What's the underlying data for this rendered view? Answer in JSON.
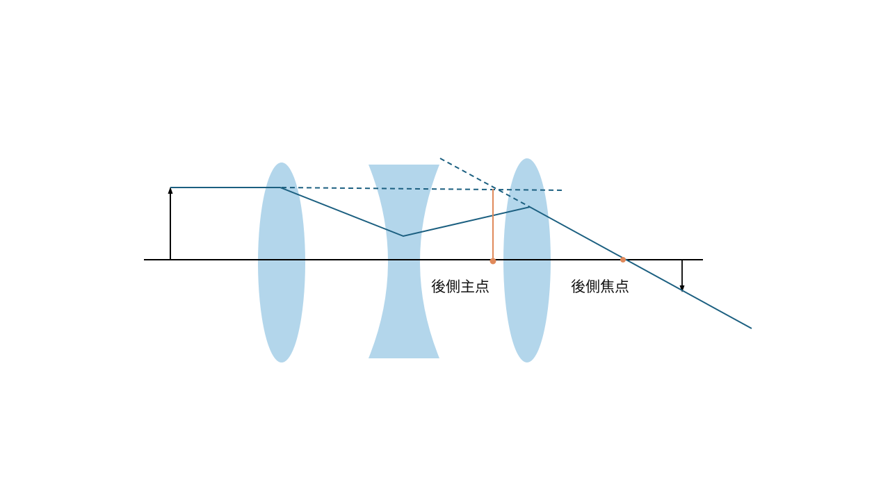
{
  "labels": {
    "rear_principal_point": "後側主点",
    "rear_focal_point": "後側焦点"
  },
  "colors": {
    "lens_fill": "#b3d6eb",
    "ray": "#1b5f80",
    "principal_marker": "#e0895a",
    "axis": "#000000",
    "arrow": "#000000",
    "background": "#ffffff"
  }
}
